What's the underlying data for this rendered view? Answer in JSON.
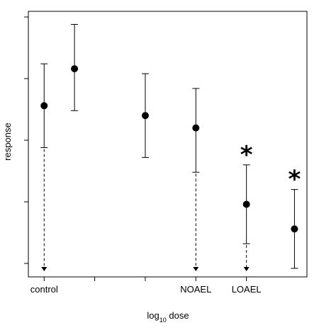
{
  "chart_data": {
    "type": "scatter",
    "title": "",
    "ylabel": "response",
    "xlabel": {
      "main": "log",
      "subscript": "10",
      "rest": " dose"
    },
    "x_tick_labels": [
      {
        "x": 1,
        "label": "control"
      },
      {
        "x": 4,
        "label": "NOAEL"
      },
      {
        "x": 5,
        "label": "LOAEL"
      }
    ],
    "x_minor_ticks": [
      2,
      3
    ],
    "xlim": [
      0.8,
      6.0
    ],
    "ylim": [
      0.0,
      1.0
    ],
    "y_ticks": [
      0.0,
      0.25,
      0.5,
      0.75,
      1.0
    ],
    "points": [
      {
        "x": 1.0,
        "y": 0.64,
        "lower": 0.47,
        "upper": 0.81,
        "marker": "",
        "arrow": true
      },
      {
        "x": 1.6,
        "y": 0.79,
        "lower": 0.62,
        "upper": 0.97,
        "marker": "",
        "arrow": false
      },
      {
        "x": 3.0,
        "y": 0.6,
        "lower": 0.43,
        "upper": 0.77,
        "marker": "",
        "arrow": false
      },
      {
        "x": 4.0,
        "y": 0.55,
        "lower": 0.37,
        "upper": 0.71,
        "marker": "",
        "arrow": true
      },
      {
        "x": 5.0,
        "y": 0.24,
        "lower": 0.08,
        "upper": 0.4,
        "marker": "*",
        "arrow": true
      },
      {
        "x": 5.95,
        "y": 0.14,
        "lower": -0.02,
        "upper": 0.3,
        "marker": "*",
        "arrow": false
      }
    ],
    "grid": false,
    "legend": "none"
  }
}
